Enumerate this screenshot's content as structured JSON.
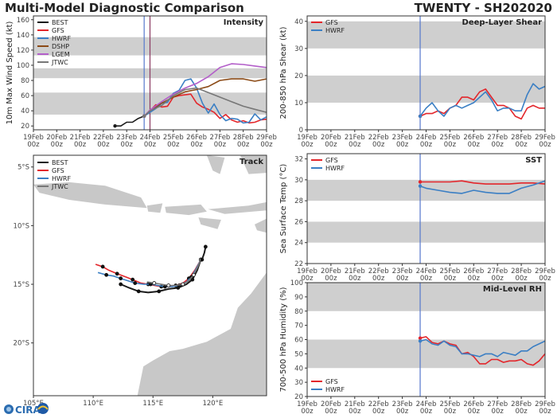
{
  "header": {
    "title": "Multi-Model Diagnostic Comparison",
    "storm": "TWENTY - SH202020"
  },
  "logo": {
    "text": "CIRA"
  },
  "colors": {
    "BEST": "#1a1a1a",
    "GFS": "#e3262b",
    "HWRF": "#3b7fc4",
    "DSHP": "#8b4a16",
    "LGEM": "#b35ec9",
    "JTWC": "#777777",
    "band": "#cfcfcf",
    "land": "#c8c8c8",
    "marker": "#5577cc"
  },
  "x_ticks": [
    [
      "19Feb",
      "00z"
    ],
    [
      "20Feb",
      "00z"
    ],
    [
      "21Feb",
      "00z"
    ],
    [
      "22Feb",
      "00z"
    ],
    [
      "23Feb",
      "00z"
    ],
    [
      "24Feb",
      "00z"
    ],
    [
      "25Feb",
      "00z"
    ],
    [
      "26Feb",
      "00z"
    ],
    [
      "27Feb",
      "00z"
    ],
    [
      "28Feb",
      "00z"
    ],
    [
      "29Feb",
      "00z"
    ]
  ],
  "chart_data": [
    {
      "type": "line",
      "title": "Intensity",
      "ylabel": "10m Max Wind Speed (kt)",
      "xlim": [
        0,
        10
      ],
      "ylim": [
        15,
        165
      ],
      "yticks": [
        20,
        40,
        60,
        80,
        100,
        120,
        140,
        160
      ],
      "bands": [
        [
          35,
          64
        ],
        [
          83,
          96
        ],
        [
          113,
          137
        ]
      ],
      "markers": [
        4.75,
        5.0
      ],
      "legend_position": "top-left",
      "series": [
        {
          "name": "BEST",
          "x": [
            3.5,
            3.75,
            4.0,
            4.25,
            4.5,
            4.75
          ],
          "y": [
            20,
            20,
            25,
            25,
            30,
            33
          ]
        },
        {
          "name": "GFS",
          "x": [
            4.75,
            5.0,
            5.25,
            5.5,
            5.75,
            6.0,
            6.25,
            6.5,
            6.75,
            7.0,
            7.25,
            7.5,
            7.75,
            8.0,
            8.25,
            8.5,
            8.75,
            9.0,
            9.25,
            9.5,
            9.75,
            10.0
          ],
          "y": [
            33,
            40,
            48,
            45,
            46,
            58,
            60,
            61,
            62,
            50,
            45,
            42,
            38,
            30,
            35,
            28,
            25,
            27,
            24,
            25,
            28,
            29
          ]
        },
        {
          "name": "HWRF",
          "x": [
            4.75,
            5.0,
            5.25,
            5.5,
            5.75,
            6.0,
            6.25,
            6.5,
            6.75,
            7.0,
            7.25,
            7.5,
            7.75,
            8.0,
            8.25,
            8.5,
            8.75,
            9.0,
            9.25,
            9.5,
            9.75,
            10.0
          ],
          "y": [
            33,
            38,
            43,
            50,
            51,
            63,
            67,
            80,
            82,
            70,
            50,
            37,
            49,
            35,
            27,
            30,
            29,
            24,
            25,
            36,
            28,
            32
          ]
        },
        {
          "name": "DSHP",
          "x": [
            4.75,
            5.0,
            5.5,
            6.0,
            6.5,
            7.0,
            7.5,
            8.0,
            8.5,
            9.0,
            9.5,
            10.0
          ],
          "y": [
            33,
            40,
            50,
            58,
            65,
            68,
            72,
            80,
            82,
            82,
            79,
            82
          ]
        },
        {
          "name": "LGEM",
          "x": [
            4.75,
            5.0,
            5.5,
            6.0,
            6.5,
            7.0,
            7.5,
            8.0,
            8.5,
            9.0,
            9.5,
            10.0
          ],
          "y": [
            33,
            41,
            52,
            62,
            70,
            76,
            85,
            97,
            102,
            101,
            99,
            97
          ]
        },
        {
          "name": "JTWC",
          "x": [
            4.75,
            5.0,
            5.5,
            6.0,
            6.5,
            7.0,
            7.5,
            8.0,
            8.5,
            9.0,
            9.5,
            10.0
          ],
          "y": [
            33,
            40,
            47,
            60,
            68,
            70,
            64,
            58,
            52,
            46,
            42,
            38
          ]
        }
      ]
    },
    {
      "type": "line",
      "title": "Deep-Layer Shear",
      "ylabel": "200-850 hPa Shear (kt)",
      "xlim": [
        0,
        10
      ],
      "ylim": [
        0,
        42
      ],
      "yticks": [
        0,
        10,
        20,
        30,
        40
      ],
      "bands": [
        [
          10,
          20
        ],
        [
          30,
          40
        ]
      ],
      "markers": [
        4.75
      ],
      "legend_position": "top-left",
      "series": [
        {
          "name": "GFS",
          "x": [
            4.75,
            5.0,
            5.25,
            5.5,
            5.75,
            6.0,
            6.25,
            6.5,
            6.75,
            7.0,
            7.25,
            7.5,
            7.75,
            8.0,
            8.25,
            8.5,
            8.75,
            9.0,
            9.25,
            9.5,
            9.75,
            10.0
          ],
          "y": [
            5,
            6,
            6,
            7,
            6,
            8,
            9,
            12,
            12,
            11,
            14,
            15,
            12,
            9,
            9,
            8,
            5,
            4,
            8,
            9,
            8,
            8
          ]
        },
        {
          "name": "HWRF",
          "x": [
            4.75,
            5.0,
            5.25,
            5.5,
            5.75,
            6.0,
            6.25,
            6.5,
            6.75,
            7.0,
            7.25,
            7.5,
            7.75,
            8.0,
            8.25,
            8.5,
            8.75,
            9.0,
            9.25,
            9.5,
            9.75,
            10.0
          ],
          "y": [
            5,
            8,
            10,
            7,
            5,
            8,
            9,
            8,
            9,
            10,
            12,
            14,
            11,
            7,
            8,
            8,
            7,
            7,
            13,
            17,
            15,
            16
          ]
        }
      ]
    },
    {
      "type": "line",
      "title": "SST",
      "ylabel": "Sea Surface Temp (°C)",
      "xlim": [
        0,
        10
      ],
      "ylim": [
        22,
        32.5
      ],
      "yticks": [
        22,
        24,
        26,
        28,
        30,
        32
      ],
      "bands": [
        [
          24,
          26
        ],
        [
          28,
          30
        ]
      ],
      "markers": [
        4.75
      ],
      "legend_position": "top-left",
      "series": [
        {
          "name": "GFS",
          "x": [
            4.75,
            5.0,
            5.5,
            6.0,
            6.5,
            7.0,
            7.5,
            8.0,
            8.5,
            9.0,
            9.5,
            10.0
          ],
          "y": [
            29.8,
            29.8,
            29.8,
            29.8,
            29.9,
            29.7,
            29.6,
            29.6,
            29.6,
            29.7,
            29.7,
            29.6
          ]
        },
        {
          "name": "HWRF",
          "x": [
            4.75,
            5.0,
            5.5,
            6.0,
            6.5,
            7.0,
            7.5,
            8.0,
            8.5,
            9.0,
            9.5,
            10.0
          ],
          "y": [
            29.4,
            29.2,
            29.0,
            28.8,
            28.7,
            29.0,
            28.8,
            28.7,
            28.7,
            29.2,
            29.5,
            29.9
          ]
        }
      ]
    },
    {
      "type": "line",
      "title": "Mid-Level RH",
      "ylabel": "700-500 hPa Humidity (%)",
      "xlim": [
        0,
        10
      ],
      "ylim": [
        20,
        100
      ],
      "yticks": [
        20,
        30,
        40,
        50,
        60,
        70,
        80,
        90,
        100
      ],
      "bands": [
        [
          40,
          60
        ],
        [
          80,
          100
        ]
      ],
      "markers": [
        4.75
      ],
      "legend_position": "bottom-left",
      "series": [
        {
          "name": "GFS",
          "x": [
            4.75,
            5.0,
            5.25,
            5.5,
            5.75,
            6.0,
            6.25,
            6.5,
            6.75,
            7.0,
            7.25,
            7.5,
            7.75,
            8.0,
            8.25,
            8.5,
            8.75,
            9.0,
            9.25,
            9.5,
            9.75,
            10.0
          ],
          "y": [
            61,
            62,
            58,
            57,
            59,
            57,
            56,
            50,
            51,
            48,
            43,
            43,
            46,
            46,
            44,
            45,
            45,
            46,
            43,
            42,
            45,
            50
          ]
        },
        {
          "name": "HWRF",
          "x": [
            4.75,
            5.0,
            5.25,
            5.5,
            5.75,
            6.0,
            6.25,
            6.5,
            6.75,
            7.0,
            7.25,
            7.5,
            7.75,
            8.0,
            8.25,
            8.5,
            8.75,
            9.0,
            9.25,
            9.5,
            9.75,
            10.0
          ],
          "y": [
            59,
            60,
            57,
            56,
            59,
            56,
            55,
            50,
            50,
            49,
            48,
            50,
            50,
            48,
            51,
            50,
            49,
            52,
            52,
            55,
            57,
            59
          ]
        }
      ]
    },
    {
      "type": "scatter",
      "title": "Track",
      "xlim": [
        105,
        124.5
      ],
      "ylim": [
        -24.5,
        -4
      ],
      "xticks": [
        105,
        110,
        115,
        120
      ],
      "xtick_labels": [
        "105°E",
        "110°E",
        "115°E",
        "120°E"
      ],
      "yticks": [
        -5,
        -10,
        -15,
        -20
      ],
      "ytick_labels": [
        "5°S",
        "10°S",
        "15°S",
        "20°S"
      ],
      "legend_position": "top-left",
      "series": [
        {
          "name": "BEST",
          "lon": [
            119.0,
            118.7,
            118.3,
            117.8,
            117.1,
            116.3,
            115.5,
            114.6,
            113.8,
            113.0,
            112.3
          ],
          "lat": [
            -12.9,
            -13.8,
            -14.6,
            -15.0,
            -15.3,
            -15.4,
            -15.6,
            -15.7,
            -15.6,
            -15.3,
            -15.0
          ]
        },
        {
          "name": "GFS",
          "lon": [
            119.0,
            118.5,
            118.0,
            117.5,
            116.9,
            116.3,
            115.7,
            115.1,
            114.6,
            114.0,
            113.3,
            112.8,
            112.0,
            111.3,
            110.8,
            110.2
          ],
          "lat": [
            -12.9,
            -13.8,
            -14.5,
            -14.9,
            -15.1,
            -15.2,
            -15.2,
            -15.1,
            -15.0,
            -14.9,
            -14.6,
            -14.4,
            -14.1,
            -13.8,
            -13.5,
            -13.3
          ]
        },
        {
          "name": "HWRF",
          "lon": [
            119.0,
            118.6,
            118.2,
            117.8,
            117.2,
            116.6,
            116.0,
            115.4,
            114.8,
            114.2,
            113.5,
            112.9,
            112.3,
            111.7,
            111.1,
            110.4
          ],
          "lat": [
            -12.9,
            -13.7,
            -14.4,
            -14.8,
            -15.1,
            -15.2,
            -15.2,
            -15.1,
            -15.0,
            -15.0,
            -14.9,
            -14.7,
            -14.5,
            -14.3,
            -14.2,
            -14.0
          ]
        },
        {
          "name": "JTWC",
          "lon": [
            119.0,
            118.7,
            118.4,
            118.0,
            117.5,
            116.9,
            116.3,
            115.7,
            115.1,
            114.5
          ],
          "lat": [
            -12.9,
            -13.6,
            -14.2,
            -14.7,
            -15.0,
            -15.1,
            -15.1,
            -15.0,
            -14.9,
            -14.8
          ]
        },
        {
          "name": "BEST",
          "lon": [
            119.4,
            119.3,
            119.1
          ],
          "lat": [
            -11.8,
            -12.3,
            -12.9
          ]
        }
      ]
    }
  ]
}
